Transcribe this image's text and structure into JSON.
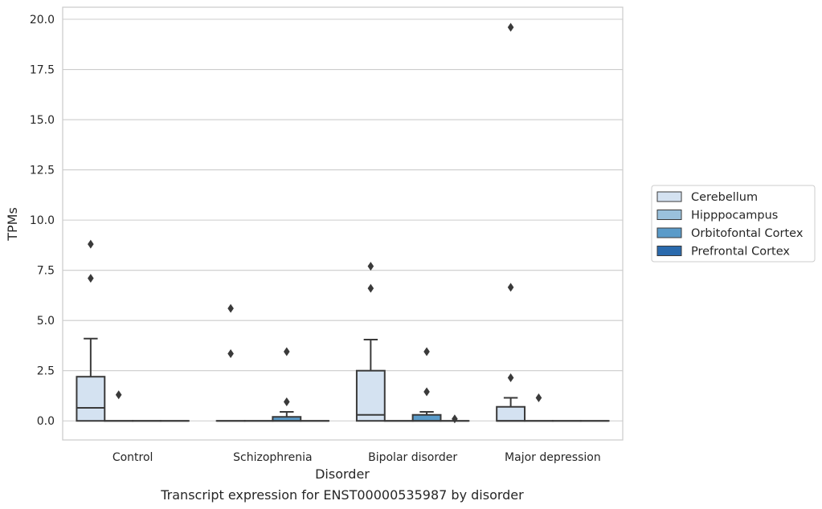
{
  "chart_data": {
    "type": "box",
    "title": "",
    "caption": "Transcript expression for ENST00000535987 by disorder",
    "xlabel": "Disorder",
    "ylabel": "TPMs",
    "ylim": [
      -0.95,
      20.6
    ],
    "yticks": [
      "0.0",
      "2.5",
      "5.0",
      "7.5",
      "10.0",
      "12.5",
      "15.0",
      "17.5",
      "20.0"
    ],
    "grid": "horizontal",
    "legend_position": "right",
    "categories": [
      "Control",
      "Schizophrenia",
      "Bipolar disorder",
      "Major depression"
    ],
    "series": [
      {
        "name": "Cerebellum",
        "color": "#d4e2f1",
        "boxes": [
          {
            "q1": 0.0,
            "median": 0.65,
            "q3": 2.2,
            "whisker_low": 0.0,
            "whisker_high": 4.1,
            "outliers": [
              7.1,
              8.8
            ]
          },
          {
            "q1": 0.0,
            "median": 0.0,
            "q3": 0.0,
            "whisker_low": 0.0,
            "whisker_high": 0.0,
            "outliers": [
              3.35,
              5.6
            ]
          },
          {
            "q1": 0.0,
            "median": 0.3,
            "q3": 2.5,
            "whisker_low": 0.0,
            "whisker_high": 4.05,
            "outliers": [
              6.6,
              7.7
            ]
          },
          {
            "q1": 0.0,
            "median": 0.0,
            "q3": 0.7,
            "whisker_low": 0.0,
            "whisker_high": 1.15,
            "outliers": [
              2.15,
              6.65,
              19.6
            ]
          }
        ]
      },
      {
        "name": "Hipppocampus",
        "color": "#9ac1dc",
        "boxes": [
          {
            "q1": 0.0,
            "median": 0.0,
            "q3": 0.0,
            "whisker_low": 0.0,
            "whisker_high": 0.0,
            "outliers": [
              1.3
            ]
          },
          {
            "q1": 0.0,
            "median": 0.0,
            "q3": 0.0,
            "whisker_low": 0.0,
            "whisker_high": 0.0,
            "outliers": []
          },
          {
            "q1": 0.0,
            "median": 0.0,
            "q3": 0.0,
            "whisker_low": 0.0,
            "whisker_high": 0.0,
            "outliers": []
          },
          {
            "q1": 0.0,
            "median": 0.0,
            "q3": 0.0,
            "whisker_low": 0.0,
            "whisker_high": 0.0,
            "outliers": [
              1.15
            ]
          }
        ]
      },
      {
        "name": "Orbitofontal Cortex",
        "color": "#5a9bc9",
        "boxes": [
          {
            "q1": 0.0,
            "median": 0.0,
            "q3": 0.0,
            "whisker_low": 0.0,
            "whisker_high": 0.0,
            "outliers": []
          },
          {
            "q1": 0.0,
            "median": 0.0,
            "q3": 0.2,
            "whisker_low": 0.0,
            "whisker_high": 0.45,
            "outliers": [
              0.95,
              3.45
            ]
          },
          {
            "q1": 0.0,
            "median": 0.0,
            "q3": 0.3,
            "whisker_low": 0.0,
            "whisker_high": 0.45,
            "outliers": [
              1.45,
              3.45
            ]
          },
          {
            "q1": 0.0,
            "median": 0.0,
            "q3": 0.0,
            "whisker_low": 0.0,
            "whisker_high": 0.0,
            "outliers": []
          }
        ]
      },
      {
        "name": "Prefrontal Cortex",
        "color": "#2a6aad",
        "boxes": [
          {
            "q1": 0.0,
            "median": 0.0,
            "q3": 0.0,
            "whisker_low": 0.0,
            "whisker_high": 0.0,
            "outliers": []
          },
          {
            "q1": 0.0,
            "median": 0.0,
            "q3": 0.0,
            "whisker_low": 0.0,
            "whisker_high": 0.0,
            "outliers": []
          },
          {
            "q1": 0.0,
            "median": 0.0,
            "q3": 0.0,
            "whisker_low": 0.0,
            "whisker_high": 0.0,
            "outliers": [
              0.1
            ]
          },
          {
            "q1": 0.0,
            "median": 0.0,
            "q3": 0.0,
            "whisker_low": 0.0,
            "whisker_high": 0.0,
            "outliers": []
          }
        ]
      }
    ]
  }
}
